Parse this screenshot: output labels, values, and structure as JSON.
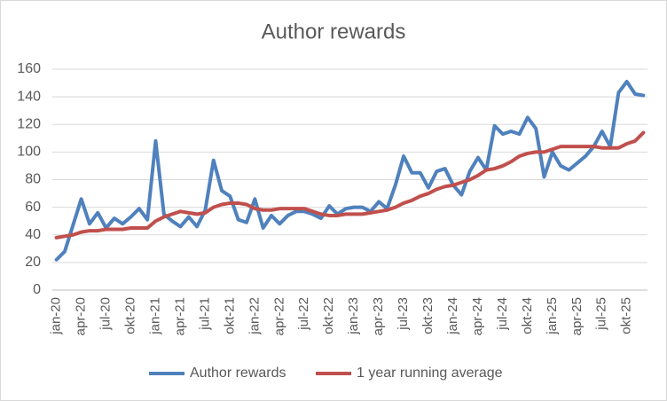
{
  "chart_data": {
    "type": "line",
    "title": "Author rewards",
    "categories": [
      "jan-20",
      null,
      null,
      "apr-20",
      null,
      null,
      "jul-20",
      null,
      null,
      "okt-20",
      null,
      null,
      "jan-21",
      null,
      null,
      "apr-21",
      null,
      null,
      "jul-21",
      null,
      null,
      "okt-21",
      null,
      null,
      "jan-22",
      null,
      null,
      "apr-22",
      null,
      null,
      "jul-22",
      null,
      null,
      "okt-22",
      null,
      null,
      "jan-23",
      null,
      null,
      "apr-23",
      null,
      null,
      "jul-23",
      null,
      null,
      "okt-23",
      null,
      null,
      "jan-24",
      null,
      null,
      "apr-24",
      null,
      null,
      "jul-24",
      null,
      null,
      "okt-24",
      null,
      null,
      "jan-25",
      null,
      null,
      "apr-25",
      null,
      null,
      "jul-25",
      null,
      null,
      "okt-25",
      null,
      null
    ],
    "series": [
      {
        "name": "Author rewards",
        "color": "#4f81bd",
        "values": [
          22,
          28,
          47,
          66,
          48,
          56,
          45,
          52,
          48,
          53,
          59,
          51,
          108,
          55,
          50,
          46,
          53,
          46,
          58,
          94,
          72,
          68,
          51,
          49,
          66,
          45,
          54,
          48,
          54,
          57,
          57,
          55,
          52,
          61,
          55,
          59,
          60,
          60,
          57,
          64,
          59,
          76,
          97,
          85,
          85,
          74,
          86,
          88,
          76,
          69,
          86,
          96,
          87,
          119,
          113,
          115,
          113,
          125,
          117,
          82,
          100,
          90,
          87,
          92,
          97,
          104,
          115,
          104,
          143,
          151,
          142,
          141
        ]
      },
      {
        "name": "1 year running average",
        "color": "#c0504d",
        "values": [
          38,
          39,
          40,
          42,
          43,
          43,
          44,
          44,
          44,
          45,
          45,
          45,
          50,
          53,
          55,
          57,
          56,
          55,
          56,
          60,
          62,
          63,
          63,
          62,
          59,
          58,
          58,
          59,
          59,
          59,
          59,
          57,
          55,
          54,
          54,
          55,
          55,
          55,
          56,
          57,
          58,
          60,
          63,
          65,
          68,
          70,
          73,
          75,
          76,
          78,
          80,
          83,
          87,
          88,
          90,
          93,
          97,
          99,
          100,
          100,
          102,
          104,
          104,
          104,
          104,
          104,
          103,
          103,
          103,
          106,
          108,
          114
        ]
      }
    ],
    "ylim": [
      0,
      160
    ],
    "yticks": [
      0,
      20,
      40,
      60,
      80,
      100,
      120,
      140,
      160
    ],
    "grid": true,
    "legend": "bottom"
  }
}
